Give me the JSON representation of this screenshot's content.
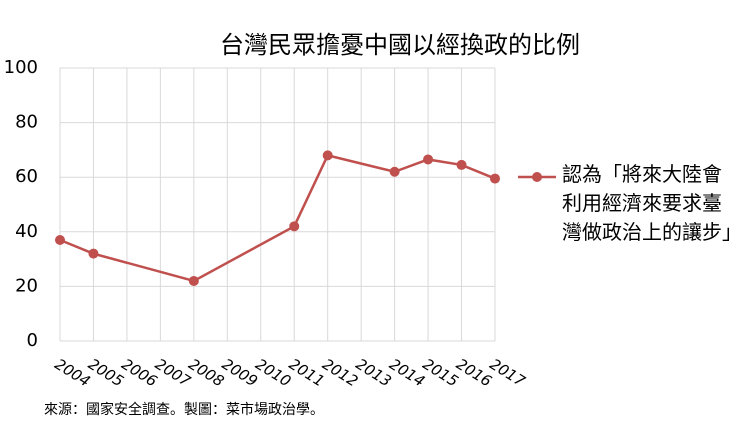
{
  "chart_data": {
    "type": "line",
    "title": "台灣民眾擔憂中國以經換政的比例",
    "x": [
      2004,
      2005,
      2008,
      2011,
      2012,
      2014,
      2015,
      2016,
      2017
    ],
    "series": [
      {
        "name": "認為「將來大陸會利用經濟來要求臺灣做政治上的讓步」",
        "color": "#c0504d",
        "values": [
          37,
          32,
          22,
          42,
          68,
          62,
          66.5,
          64.5,
          59.5
        ]
      }
    ],
    "xlim": [
      2004,
      2017
    ],
    "xticks": [
      2004,
      2005,
      2006,
      2007,
      2008,
      2009,
      2010,
      2011,
      2012,
      2013,
      2014,
      2015,
      2016,
      2017
    ],
    "ylim": [
      0,
      100
    ],
    "yticks": [
      0,
      20,
      40,
      60,
      80,
      100
    ],
    "grid": true,
    "legend": "right",
    "source": "來源：國家安全調查。製圖：菜市場政治學。"
  }
}
